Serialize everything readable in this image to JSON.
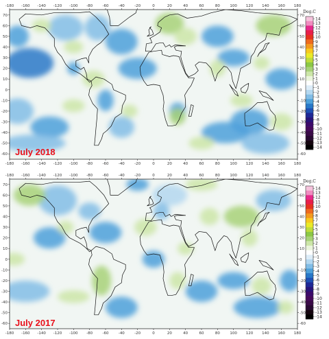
{
  "panels": [
    {
      "id": "top",
      "label": "July 2018"
    },
    {
      "id": "bottom",
      "label": "July 2017"
    }
  ],
  "longitude_ticks": [
    "-180",
    "-160",
    "-140",
    "-120",
    "-100",
    "-80",
    "-60",
    "-40",
    "-20",
    "0",
    "20",
    "40",
    "60",
    "80",
    "100",
    "120",
    "140",
    "160",
    "180"
  ],
  "latitude_ticks": [
    "70",
    "60",
    "50",
    "40",
    "30",
    "20",
    "10",
    "0",
    "-10",
    "-20",
    "-30",
    "-40",
    "-50",
    "-60"
  ],
  "colorbar": {
    "title": "Deg.C",
    "ticks": [
      "14",
      "13",
      "12",
      "11",
      "10",
      "9",
      "8",
      "7",
      "6",
      "5",
      "4",
      "3",
      "2",
      "1",
      "0",
      "-1",
      "-2",
      "-3",
      "-4",
      "-5",
      "-6",
      "-7",
      "-8",
      "-9",
      "-10",
      "-11",
      "-12",
      "-13",
      "-14"
    ],
    "colors": [
      "#f5c3dc",
      "#f08cc0",
      "#e62a8c",
      "#e81e4a",
      "#e6321e",
      "#ee6a1e",
      "#f49a1e",
      "#f8c81e",
      "#eaea28",
      "#bedc3c",
      "#8cc846",
      "#a8d278",
      "#cce6a8",
      "#eaf4dc",
      "#ffffff",
      "#dcecf8",
      "#b4d8f0",
      "#82bde6",
      "#4ea0da",
      "#2878c8",
      "#1e50b4",
      "#1e2896",
      "#28147a",
      "#3c0a6a",
      "#460a5a",
      "#3a0a48",
      "#280a32",
      "#14050f",
      "#000000"
    ]
  }
}
